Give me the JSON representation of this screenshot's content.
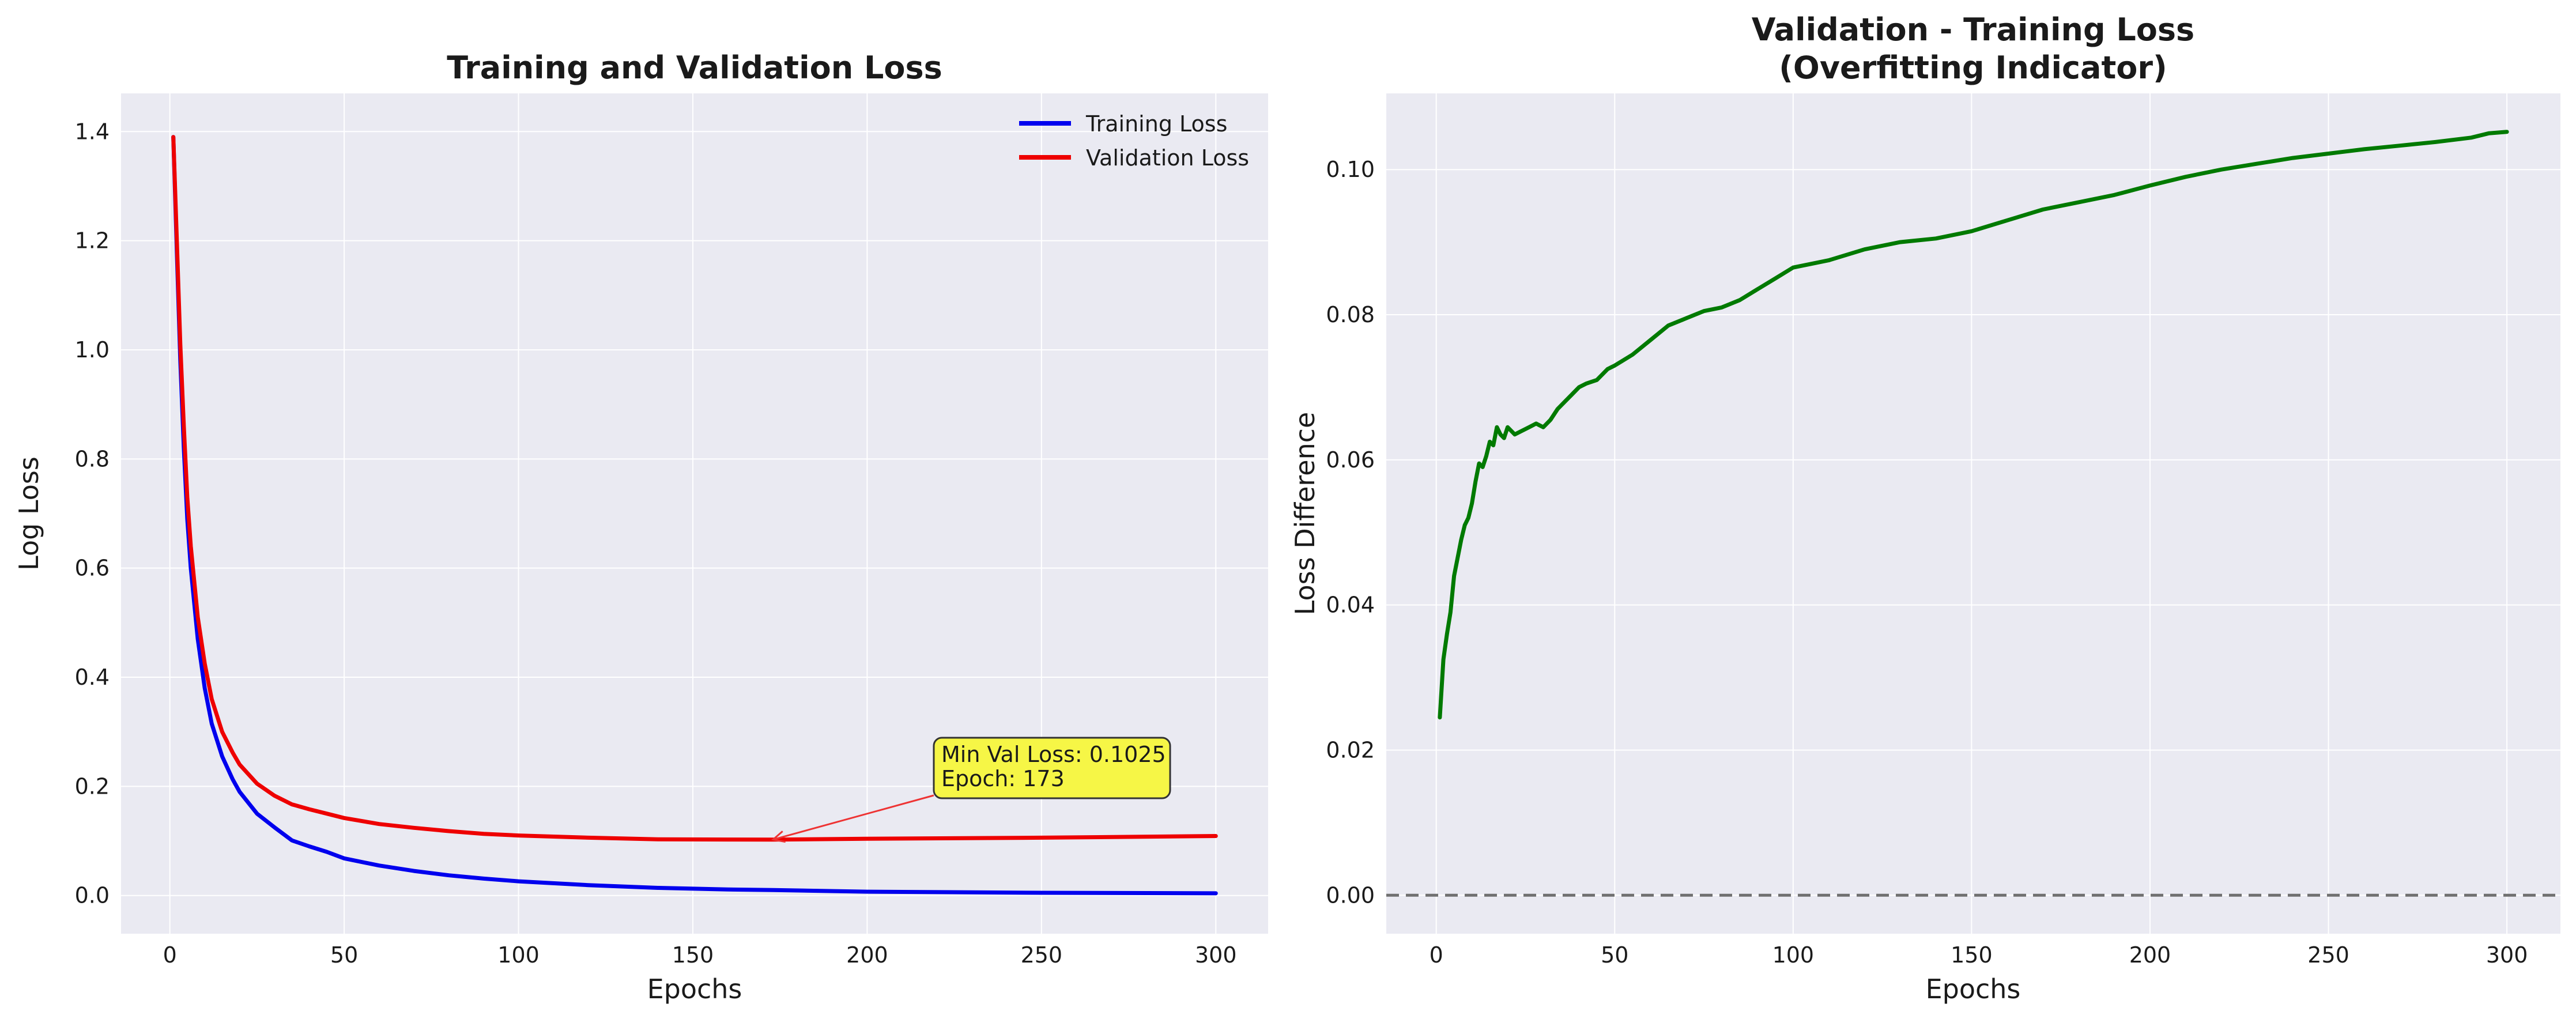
{
  "chart_data": [
    {
      "type": "line",
      "title": "Training and Validation Loss",
      "xlabel": "Epochs",
      "ylabel": "Log Loss",
      "xlim": [
        -14,
        315
      ],
      "ylim": [
        -0.07,
        1.47
      ],
      "xticks": [
        0,
        50,
        100,
        150,
        200,
        250,
        300
      ],
      "xtick_labels": [
        "0",
        "50",
        "100",
        "150",
        "200",
        "250",
        "300"
      ],
      "yticks": [
        0.0,
        0.2,
        0.4,
        0.6,
        0.8,
        1.0,
        1.2,
        1.4
      ],
      "ytick_labels": [
        "0.0",
        "0.2",
        "0.4",
        "0.6",
        "0.8",
        "1.0",
        "1.2",
        "1.4"
      ],
      "grid": true,
      "legend_position": "upper right",
      "x": [
        1,
        2,
        3,
        4,
        5,
        6,
        8,
        10,
        12,
        15,
        18,
        20,
        25,
        30,
        35,
        40,
        45,
        50,
        60,
        70,
        80,
        90,
        100,
        120,
        140,
        160,
        173,
        200,
        250,
        300
      ],
      "series": [
        {
          "name": "Training Loss",
          "color": "#0000ee",
          "values": [
            1.39,
            1.18,
            0.98,
            0.82,
            0.69,
            0.6,
            0.47,
            0.38,
            0.315,
            0.255,
            0.213,
            0.19,
            0.15,
            0.125,
            0.101,
            0.09,
            0.08,
            0.068,
            0.055,
            0.045,
            0.037,
            0.031,
            0.026,
            0.019,
            0.014,
            0.011,
            0.01,
            0.007,
            0.005,
            0.004
          ]
        },
        {
          "name": "Validation Loss",
          "color": "#ee0000",
          "values": [
            1.39,
            1.2,
            1.01,
            0.86,
            0.73,
            0.64,
            0.51,
            0.425,
            0.36,
            0.3,
            0.262,
            0.24,
            0.205,
            0.183,
            0.167,
            0.158,
            0.15,
            0.142,
            0.131,
            0.124,
            0.118,
            0.113,
            0.11,
            0.106,
            0.103,
            0.1026,
            0.1025,
            0.104,
            0.106,
            0.109
          ]
        }
      ],
      "annotations": [
        {
          "text_lines": [
            "Min Val Loss: 0.1025",
            "Epoch: 173"
          ],
          "xy": [
            173,
            0.1025
          ],
          "xytext": [
            224,
            0.25
          ],
          "box_color": "#f6f646",
          "arrow_color": "#ee3333"
        }
      ]
    },
    {
      "type": "line",
      "title_lines": [
        "Validation - Training Loss",
        "(Overfitting Indicator)"
      ],
      "xlabel": "Epochs",
      "ylabel": "Loss Difference",
      "xlim": [
        -14,
        315
      ],
      "ylim": [
        -0.0053,
        0.1105
      ],
      "xticks": [
        0,
        50,
        100,
        150,
        200,
        250,
        300
      ],
      "xtick_labels": [
        "0",
        "50",
        "100",
        "150",
        "200",
        "250",
        "300"
      ],
      "yticks": [
        0.0,
        0.02,
        0.04,
        0.06,
        0.08,
        0.1
      ],
      "ytick_labels": [
        "0.00",
        "0.02",
        "0.04",
        "0.06",
        "0.08",
        "0.10"
      ],
      "grid": true,
      "x": [
        1,
        2,
        3,
        4,
        5,
        6,
        7,
        8,
        9,
        10,
        11,
        12,
        13,
        14,
        15,
        16,
        17,
        18,
        19,
        20,
        22,
        24,
        26,
        28,
        30,
        32,
        34,
        36,
        38,
        40,
        42,
        45,
        48,
        50,
        55,
        60,
        65,
        70,
        75,
        80,
        85,
        90,
        95,
        100,
        110,
        120,
        130,
        140,
        150,
        160,
        170,
        180,
        190,
        200,
        210,
        220,
        230,
        240,
        250,
        260,
        270,
        280,
        290,
        295,
        300
      ],
      "series": [
        {
          "name": "",
          "color": "#007a00",
          "values": [
            0.0245,
            0.0325,
            0.036,
            0.039,
            0.044,
            0.0465,
            0.049,
            0.051,
            0.052,
            0.054,
            0.057,
            0.0595,
            0.059,
            0.0605,
            0.0625,
            0.062,
            0.0645,
            0.0635,
            0.063,
            0.0645,
            0.0635,
            0.064,
            0.0645,
            0.065,
            0.0645,
            0.0655,
            0.067,
            0.068,
            0.069,
            0.07,
            0.0705,
            0.071,
            0.0725,
            0.073,
            0.0745,
            0.0765,
            0.0785,
            0.0795,
            0.0805,
            0.081,
            0.082,
            0.0835,
            0.085,
            0.0865,
            0.0875,
            0.089,
            0.09,
            0.0905,
            0.0915,
            0.093,
            0.0945,
            0.0955,
            0.0965,
            0.0978,
            0.099,
            0.1,
            0.1008,
            0.1016,
            0.1022,
            0.1028,
            0.1033,
            0.1038,
            0.1044,
            0.105,
            0.1052
          ]
        }
      ],
      "reference_line": {
        "y": 0.0,
        "style": "dashed",
        "color": "#707070"
      }
    }
  ]
}
